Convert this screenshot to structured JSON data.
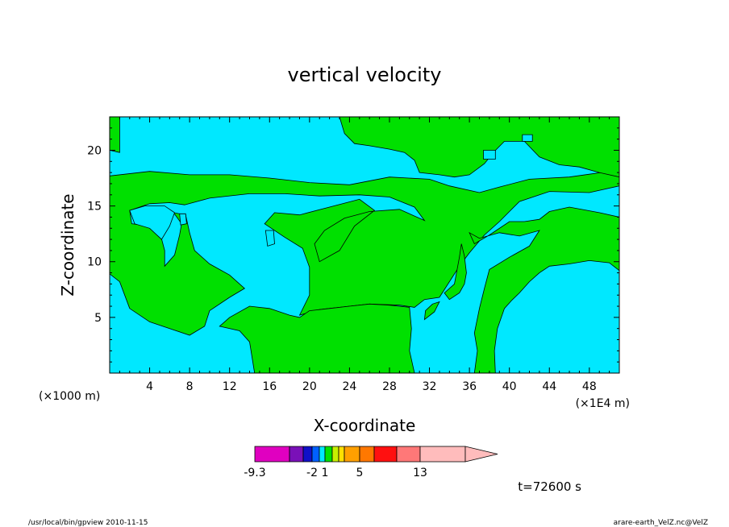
{
  "chart_data": {
    "type": "heatmap",
    "title": "vertical velocity",
    "xlabel": "X-coordinate",
    "ylabel": "Z-coordinate",
    "x_unit_left": "(×1000 m)",
    "x_unit_right": "(×1E4 m)",
    "xlim": [
      0,
      51
    ],
    "ylim": [
      0,
      23
    ],
    "x_ticks": [
      4,
      8,
      12,
      16,
      20,
      24,
      28,
      32,
      36,
      40,
      44,
      48
    ],
    "y_ticks": [
      5,
      10,
      15,
      20
    ],
    "colorbar": {
      "levels": [
        -9.3,
        -2,
        1,
        5,
        13
      ],
      "labels": [
        "-9.3",
        "-2",
        "1",
        "5",
        "13"
      ],
      "colors": [
        "#e000c0",
        "#7a10b8",
        "#1010c8",
        "#0060ff",
        "#00e8ff",
        "#00e000",
        "#c8f000",
        "#ffe000",
        "#ffa000",
        "#ff7800",
        "#ff1010",
        "#ff7878",
        "#ffbcbc"
      ]
    },
    "background_color": "#00e8ff",
    "region_color": "#00e000",
    "regions": [
      [
        [
          0,
          17.7
        ],
        [
          4,
          18.1
        ],
        [
          8,
          17.8
        ],
        [
          12,
          17.8
        ],
        [
          16,
          17.5
        ],
        [
          20,
          17.1
        ],
        [
          24,
          16.9
        ],
        [
          28,
          17.6
        ],
        [
          32,
          17.4
        ],
        [
          34,
          16.8
        ],
        [
          37,
          16.2
        ],
        [
          39,
          16.7
        ],
        [
          42,
          17.4
        ],
        [
          46,
          17.6
        ],
        [
          50,
          18.1
        ],
        [
          51,
          18.5
        ],
        [
          51,
          16.8
        ],
        [
          48,
          16.2
        ],
        [
          44,
          16.3
        ],
        [
          41,
          15.4
        ],
        [
          39,
          13.6
        ],
        [
          37.5,
          12.4
        ],
        [
          36,
          10.8
        ],
        [
          35,
          9.6
        ],
        [
          34,
          8.2
        ],
        [
          33,
          6.8
        ],
        [
          31.5,
          6.6
        ],
        [
          30.5,
          5.9
        ],
        [
          29,
          6.1
        ],
        [
          26,
          6.2
        ],
        [
          24,
          6.0
        ],
        [
          21,
          5.7
        ],
        [
          19,
          5.2
        ],
        [
          20,
          7.0
        ],
        [
          20,
          9.5
        ],
        [
          19.3,
          11.2
        ],
        [
          17.5,
          12.2
        ],
        [
          15.5,
          13.4
        ],
        [
          16.5,
          14.4
        ],
        [
          19,
          14.2
        ],
        [
          22,
          14.9
        ],
        [
          25,
          15.6
        ],
        [
          26.5,
          14.6
        ],
        [
          24.5,
          13.2
        ],
        [
          23,
          11.0
        ],
        [
          21,
          10.0
        ],
        [
          20.5,
          11.6
        ],
        [
          21.5,
          12.8
        ],
        [
          23.5,
          13.9
        ],
        [
          26,
          14.5
        ],
        [
          29,
          14.7
        ],
        [
          31.5,
          13.7
        ],
        [
          30.5,
          14.9
        ],
        [
          28,
          15.8
        ],
        [
          25,
          16.0
        ],
        [
          21,
          15.9
        ],
        [
          17.5,
          16.1
        ],
        [
          14,
          16.1
        ],
        [
          10,
          15.7
        ],
        [
          7.5,
          15.1
        ],
        [
          6,
          15.3
        ],
        [
          4,
          15.2
        ],
        [
          2,
          14.6
        ],
        [
          2.2,
          13.4
        ],
        [
          4,
          13.2
        ],
        [
          5,
          12.7
        ],
        [
          5.5,
          11.0
        ],
        [
          5.5,
          9.6
        ],
        [
          6.5,
          10.6
        ],
        [
          7,
          12.4
        ],
        [
          7.2,
          13.4
        ],
        [
          6.4,
          14.4
        ],
        [
          7.6,
          14.2
        ],
        [
          8,
          12.6
        ],
        [
          8.5,
          11.0
        ],
        [
          10,
          9.8
        ],
        [
          12,
          8.8
        ],
        [
          13.5,
          7.6
        ],
        [
          12,
          6.8
        ],
        [
          10,
          5.6
        ],
        [
          9.5,
          4.2
        ],
        [
          8,
          3.4
        ],
        [
          6,
          4.0
        ],
        [
          4,
          4.6
        ],
        [
          2,
          5.8
        ],
        [
          1.5,
          7.0
        ],
        [
          1,
          8.2
        ],
        [
          0,
          8.9
        ]
      ],
      [
        [
          0,
          20
        ],
        [
          1,
          19.8
        ],
        [
          1,
          23
        ],
        [
          0,
          23
        ]
      ],
      [
        [
          23,
          23
        ],
        [
          23.5,
          21.5
        ],
        [
          24.5,
          20.6
        ],
        [
          26,
          20.4
        ],
        [
          28,
          20.1
        ],
        [
          29.5,
          19.8
        ],
        [
          30.5,
          19.1
        ],
        [
          31,
          18.0
        ],
        [
          33,
          17.8
        ],
        [
          34.5,
          17.6
        ],
        [
          36,
          17.8
        ],
        [
          37.5,
          18.8
        ],
        [
          38.5,
          19.9
        ],
        [
          39.5,
          20.8
        ],
        [
          41.5,
          20.8
        ],
        [
          43,
          19.4
        ],
        [
          45,
          18.7
        ],
        [
          47,
          18.5
        ],
        [
          49,
          18.0
        ],
        [
          51,
          17.6
        ],
        [
          51,
          23
        ]
      ],
      [
        [
          20,
          5.6
        ],
        [
          22,
          5.8
        ],
        [
          24,
          6.0
        ],
        [
          26,
          6.2
        ],
        [
          28,
          6.1
        ],
        [
          30,
          5.9
        ],
        [
          30.2,
          4.0
        ],
        [
          30,
          2.0
        ],
        [
          30.5,
          0
        ],
        [
          14.5,
          0
        ],
        [
          14,
          2.8
        ],
        [
          13,
          3.8
        ],
        [
          11,
          4.2
        ],
        [
          12,
          5.0
        ],
        [
          14,
          6.0
        ],
        [
          16,
          5.8
        ],
        [
          18,
          5.2
        ],
        [
          19,
          5.0
        ]
      ],
      [
        [
          36,
          12.6
        ],
        [
          37,
          12.1
        ],
        [
          39,
          12.6
        ],
        [
          41,
          12.3
        ],
        [
          43,
          12.8
        ],
        [
          42,
          11.4
        ],
        [
          40,
          10.4
        ],
        [
          38,
          9.3
        ],
        [
          37.5,
          7.6
        ],
        [
          37,
          5.8
        ],
        [
          36.5,
          3.6
        ],
        [
          36.8,
          2.0
        ],
        [
          36.5,
          0
        ],
        [
          38.6,
          0
        ],
        [
          38.5,
          2.0
        ],
        [
          38.8,
          4.0
        ],
        [
          39.5,
          5.8
        ],
        [
          40.2,
          6.5
        ],
        [
          41,
          7.2
        ],
        [
          42,
          8.2
        ],
        [
          43,
          9.0
        ],
        [
          44,
          9.6
        ],
        [
          46,
          9.8
        ],
        [
          48,
          10.1
        ],
        [
          50,
          9.9
        ],
        [
          51,
          9.2
        ],
        [
          51,
          14.0
        ],
        [
          49,
          14.4
        ],
        [
          46,
          14.9
        ],
        [
          44,
          14.5
        ],
        [
          43,
          13.8
        ],
        [
          41.5,
          13.6
        ],
        [
          40,
          13.6
        ],
        [
          38,
          12.4
        ],
        [
          36.5,
          11.6
        ]
      ],
      [
        [
          34,
          6.6
        ],
        [
          35,
          7.2
        ],
        [
          35.5,
          8.0
        ],
        [
          35.7,
          9.0
        ],
        [
          35.5,
          10.5
        ],
        [
          35.2,
          11.6
        ],
        [
          35,
          10.4
        ],
        [
          34.5,
          8.0
        ],
        [
          33.5,
          7.2
        ]
      ],
      [
        [
          31.5,
          4.8
        ],
        [
          32.5,
          5.5
        ],
        [
          33,
          6.4
        ],
        [
          32.3,
          6.2
        ],
        [
          31.6,
          5.6
        ]
      ]
    ],
    "holes": [
      [
        [
          2,
          14.6
        ],
        [
          3.5,
          15.0
        ],
        [
          5.5,
          15.0
        ],
        [
          6.5,
          14.4
        ],
        [
          6.0,
          13.2
        ],
        [
          5.2,
          12.0
        ],
        [
          4.0,
          13.0
        ],
        [
          2.5,
          13.4
        ]
      ],
      [
        [
          7,
          14.3
        ],
        [
          7.6,
          14.3
        ],
        [
          7.7,
          13.4
        ],
        [
          7.1,
          13.3
        ]
      ],
      [
        [
          15.6,
          12.8
        ],
        [
          16.4,
          12.8
        ],
        [
          16.5,
          11.6
        ],
        [
          15.8,
          11.4
        ]
      ],
      [
        [
          37.4,
          20.0
        ],
        [
          38.6,
          20.0
        ],
        [
          38.6,
          19.2
        ],
        [
          37.4,
          19.2
        ]
      ],
      [
        [
          41.3,
          21.4
        ],
        [
          42.3,
          21.4
        ],
        [
          42.3,
          20.8
        ],
        [
          41.3,
          20.8
        ]
      ]
    ],
    "time_label": "t=72600 s"
  },
  "footer": {
    "left": "/usr/local/bin/gpview   2010-11-15",
    "right": "arare-earth_VelZ.nc@VelZ"
  }
}
